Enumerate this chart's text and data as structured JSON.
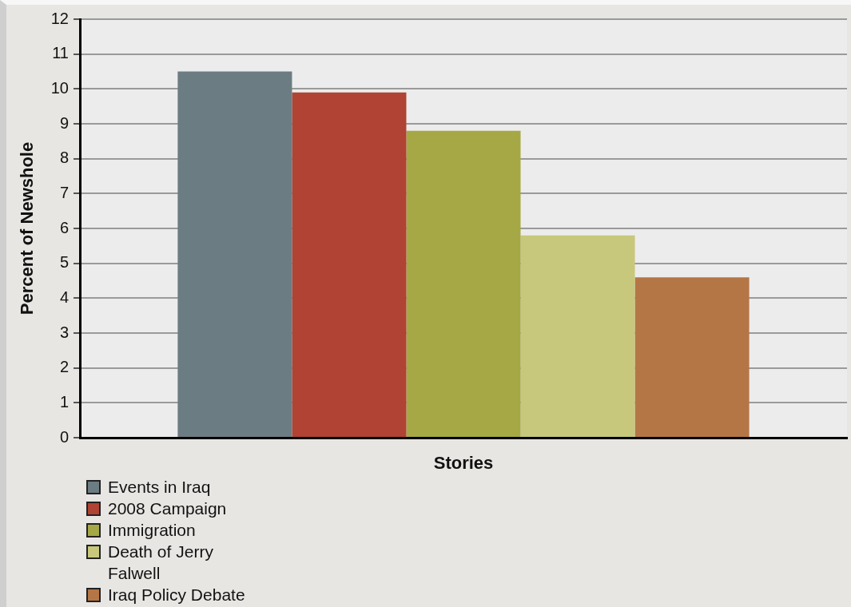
{
  "chart_data": {
    "type": "bar",
    "xlabel": "Stories",
    "ylabel": "Percent of Newshole",
    "categories": [
      null
    ],
    "series": [
      {
        "name": "Events in Iraq",
        "color": "#6c7c83",
        "values": [
          10.5
        ]
      },
      {
        "name": "2008 Campaign",
        "color": "#b04333",
        "values": [
          9.9
        ]
      },
      {
        "name": "Immigration",
        "color": "#a6a845",
        "values": [
          8.8
        ]
      },
      {
        "name": "Death of Jerry Falwell",
        "color": "#c8c87c",
        "values": [
          5.8
        ]
      },
      {
        "name": "Iraq Policy Debate",
        "color": "#b57645",
        "values": [
          4.6
        ]
      }
    ],
    "ylim": [
      0,
      12
    ],
    "yticks": [
      0,
      1,
      2,
      3,
      4,
      5,
      6,
      7,
      8,
      9,
      10,
      11,
      12
    ],
    "grid": "y",
    "legend": "bottom left"
  }
}
